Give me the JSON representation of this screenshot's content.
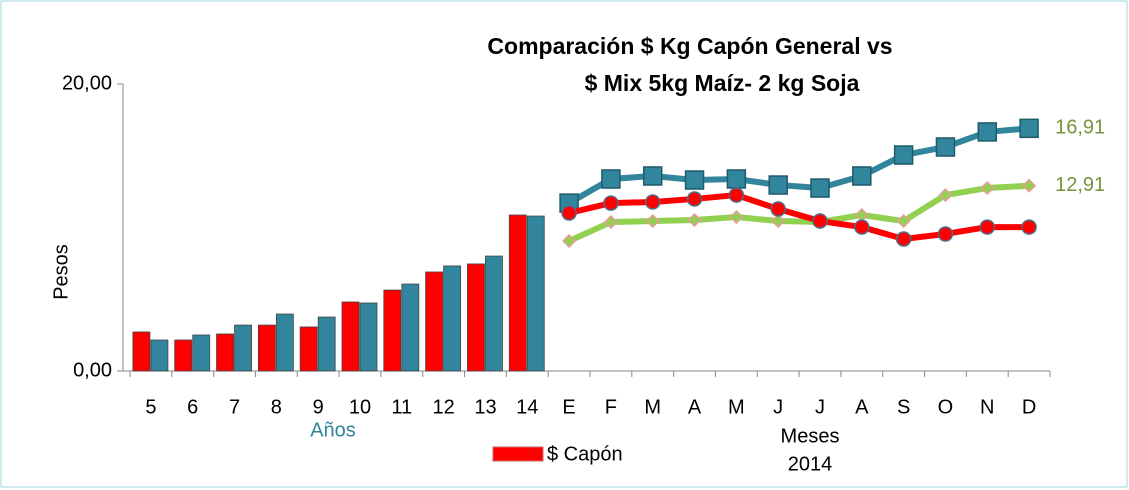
{
  "chart_data": {
    "type": "combo",
    "title": [
      "Comparación $ Kg Capón General vs",
      "$ Mix 5kg Maíz- 2 kg Soja"
    ],
    "y_label": "Pesos",
    "x_labels": {
      "years": "Años",
      "months": [
        "Meses",
        "2014"
      ]
    },
    "categories": [
      "5",
      "6",
      "7",
      "8",
      "9",
      "10",
      "11",
      "12",
      "13",
      "14",
      "E",
      "F",
      "M",
      "A",
      "M",
      "J",
      "J",
      "A",
      "S",
      "O",
      "N",
      "D"
    ],
    "ylim": [
      0,
      20
    ],
    "yticks": [
      {
        "value": 0,
        "label": "0,00"
      },
      {
        "value": 20,
        "label": "20,00"
      }
    ],
    "series": [
      {
        "name": "$ Capón",
        "type": "bar",
        "color": "#ff0000",
        "values": [
          2.72,
          2.16,
          2.58,
          3.2,
          3.07,
          4.81,
          5.64,
          6.9,
          7.46,
          10.87,
          null,
          null,
          null,
          null,
          null,
          null,
          null,
          null,
          null,
          null,
          null,
          null
        ]
      },
      {
        "type": "bar",
        "color": "#31859c",
        "values": [
          2.16,
          2.51,
          3.2,
          3.97,
          3.76,
          4.74,
          6.06,
          7.32,
          8.01,
          10.8,
          null,
          null,
          null,
          null,
          null,
          null,
          null,
          null,
          null,
          null,
          null,
          null
        ]
      },
      {
        "type": "line",
        "color": "#31859c",
        "marker": "square",
        "values": [
          null,
          null,
          null,
          null,
          null,
          null,
          null,
          null,
          null,
          null,
          11.7,
          13.38,
          13.59,
          13.31,
          13.38,
          12.96,
          12.75,
          13.59,
          15.05,
          15.61,
          16.66,
          16.91
        ]
      },
      {
        "type": "line",
        "color": "#92d050",
        "marker": "diamond",
        "values": [
          null,
          null,
          null,
          null,
          null,
          null,
          null,
          null,
          null,
          null,
          9.06,
          10.38,
          10.45,
          10.52,
          10.73,
          10.45,
          10.38,
          10.87,
          10.45,
          12.26,
          12.75,
          12.91
        ]
      },
      {
        "type": "line",
        "color": "#ff0000",
        "marker": "circle",
        "values": [
          null,
          null,
          null,
          null,
          null,
          null,
          null,
          null,
          null,
          null,
          11.01,
          11.7,
          11.78,
          11.99,
          12.26,
          11.29,
          10.45,
          10.03,
          9.2,
          9.55,
          10.03,
          10.03
        ]
      }
    ],
    "annotations": [
      "16,91",
      "12,91"
    ]
  }
}
